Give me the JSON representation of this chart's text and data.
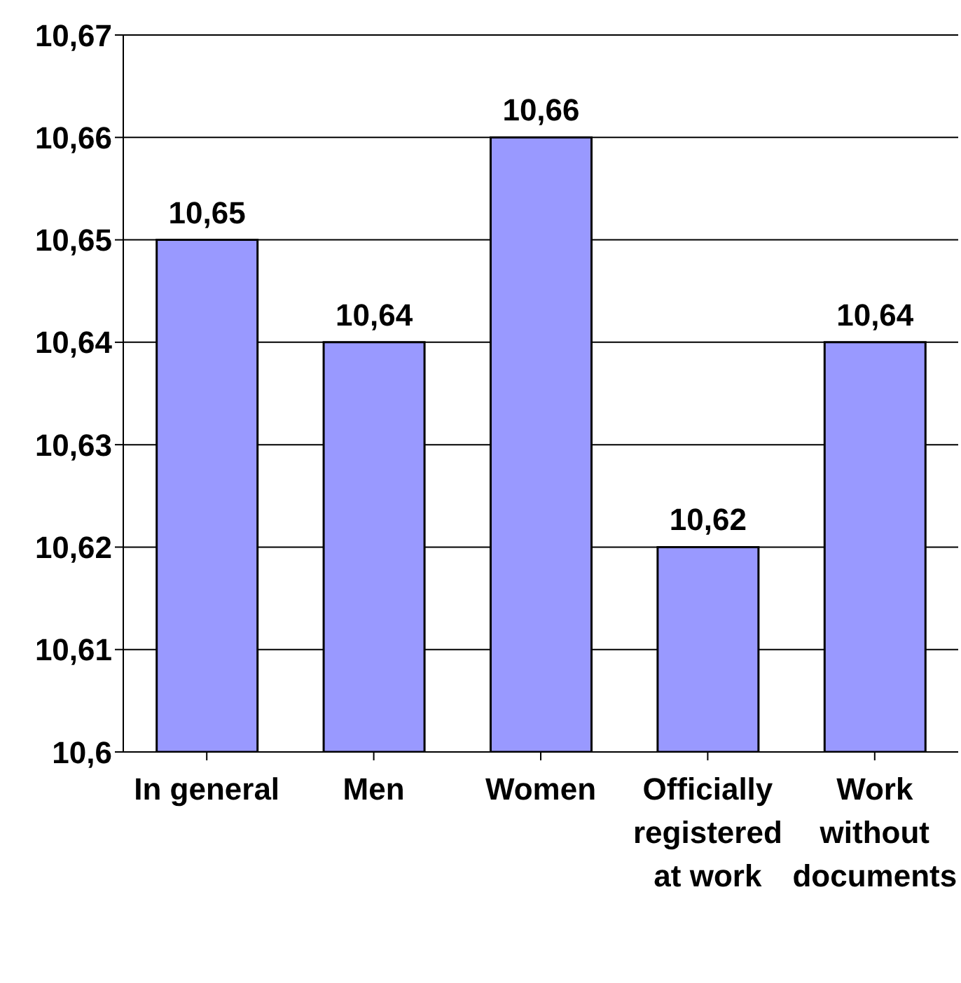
{
  "chart_data": {
    "type": "bar",
    "categories": [
      "In general",
      "Men",
      "Women",
      "Officially registered at work",
      "Work without documents"
    ],
    "values": [
      10.65,
      10.64,
      10.66,
      10.62,
      10.64
    ],
    "value_labels": [
      "10,65",
      "10,64",
      "10,66",
      "10,62",
      "10,64"
    ],
    "color": "#9999ff",
    "ylim": [
      10.6,
      10.67
    ],
    "yticks": [
      {
        "value": 10.6,
        "label": "10,6"
      },
      {
        "value": 10.61,
        "label": "10,61"
      },
      {
        "value": 10.62,
        "label": "10,62"
      },
      {
        "value": 10.63,
        "label": "10,63"
      },
      {
        "value": 10.64,
        "label": "10,64"
      },
      {
        "value": 10.65,
        "label": "10,65"
      },
      {
        "value": 10.66,
        "label": "10,66"
      },
      {
        "value": 10.67,
        "label": "10,67"
      }
    ],
    "grid": "y"
  }
}
